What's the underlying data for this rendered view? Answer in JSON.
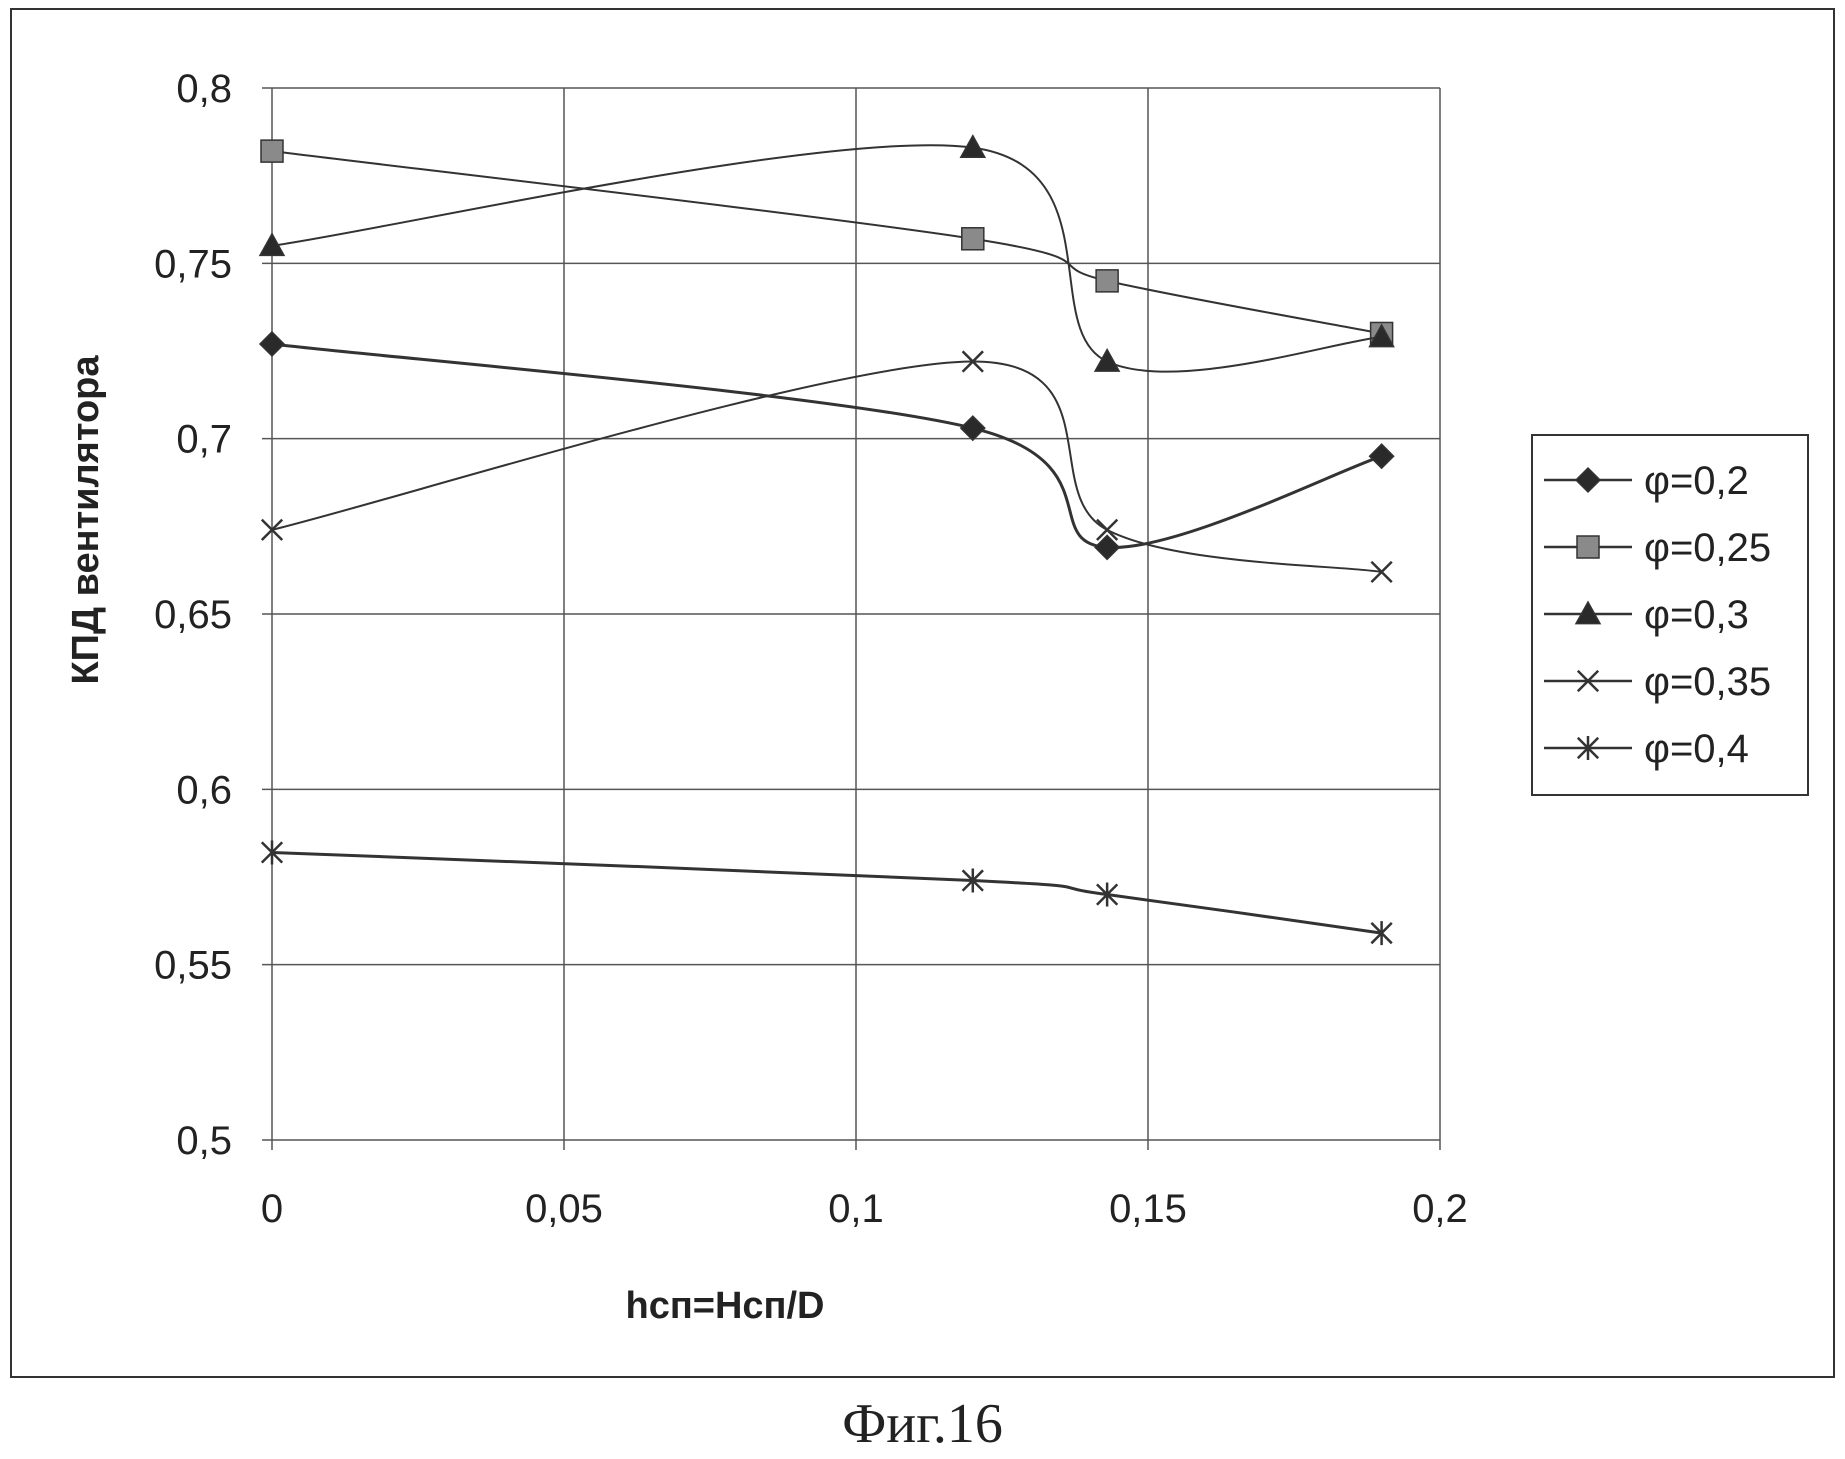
{
  "chart_data": {
    "type": "line",
    "title": "",
    "xlabel": "hсп=Hсп/D",
    "ylabel": "КПД вентилятора",
    "xlim": [
      0,
      0.2
    ],
    "ylim": [
      0.5,
      0.8
    ],
    "x_ticks": [
      "0",
      "0,05",
      "0,1",
      "0,15",
      "0,2"
    ],
    "y_ticks": [
      "0,8",
      "0,75",
      "0,7",
      "0,65",
      "0,6",
      "0,55",
      "0,5"
    ],
    "x_tick_values": [
      0,
      0.05,
      0.1,
      0.15,
      0.2
    ],
    "y_tick_values": [
      0.8,
      0.75,
      0.7,
      0.65,
      0.6,
      0.55,
      0.5
    ],
    "grid": true,
    "legend_position": "right",
    "x": [
      0,
      0.12,
      0.143,
      0.19
    ],
    "series": [
      {
        "name": "φ=0,2",
        "marker": "diamond",
        "values": [
          0.727,
          0.703,
          0.669,
          0.695
        ]
      },
      {
        "name": "φ=0,25",
        "marker": "square",
        "values": [
          0.782,
          0.757,
          0.745,
          0.73
        ]
      },
      {
        "name": "φ=0,3",
        "marker": "triangle",
        "values": [
          0.755,
          0.783,
          0.722,
          0.729
        ]
      },
      {
        "name": "φ=0,35",
        "marker": "x",
        "values": [
          0.674,
          0.722,
          0.674,
          0.662
        ]
      },
      {
        "name": "φ=0,4",
        "marker": "asterisk",
        "values": [
          0.582,
          0.574,
          0.57,
          0.559
        ]
      }
    ]
  },
  "caption": "Фиг.16",
  "colors": {
    "line": "#333333",
    "grid": "#555555",
    "marker_fill": "#2a2a2a",
    "square_fill": "#8a8a8a"
  }
}
